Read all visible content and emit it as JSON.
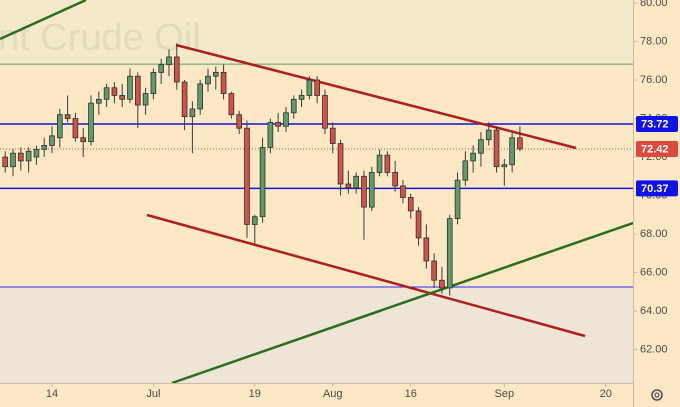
{
  "chart_data": {
    "type": "candlestick",
    "watermark": "nt Crude Oil",
    "xlim": [
      -0.67,
      80.5
    ],
    "xticks": [
      {
        "value": 6,
        "label": "14"
      },
      {
        "value": 19,
        "label": "Jul"
      },
      {
        "value": 32,
        "label": "19"
      },
      {
        "value": 42,
        "label": "Aug"
      },
      {
        "value": 52,
        "label": "16"
      },
      {
        "value": 64,
        "label": "Sep"
      },
      {
        "value": 77,
        "label": "20"
      }
    ],
    "ylim": [
      60.26,
      80.16
    ],
    "yticks": [
      {
        "value": 62,
        "label": "62.00"
      },
      {
        "value": 64,
        "label": "64.00"
      },
      {
        "value": 66,
        "label": "66.00"
      },
      {
        "value": 68,
        "label": "68.00"
      },
      {
        "value": 70,
        "label": "70.00"
      },
      {
        "value": 72,
        "label": "72.00"
      },
      {
        "value": 74,
        "label": "74.00"
      },
      {
        "value": 76,
        "label": "76.00"
      },
      {
        "value": 78,
        "label": "78.00"
      },
      {
        "value": 80,
        "label": "80.00"
      }
    ],
    "up_color": "#5f9c6c",
    "down_color": "#d0524a",
    "open": [
      72.0,
      71.5,
      72.2,
      71.8,
      72.0,
      72.4,
      72.6,
      73.0,
      74.2,
      74.0,
      73.0,
      72.8,
      74.8,
      75.0,
      75.6,
      75.2,
      75.0,
      76.2,
      74.7,
      75.3,
      76.4,
      76.8,
      77.2,
      75.9,
      74.1,
      74.5,
      75.8,
      76.2,
      76.4,
      75.3,
      74.2,
      73.5,
      68.5,
      68.9,
      72.5,
      73.8,
      73.6,
      74.3,
      75.0,
      75.2,
      76.0,
      75.2,
      73.5,
      72.7,
      70.6,
      70.4,
      71.0,
      69.4,
      71.2,
      72.1,
      71.2,
      70.5,
      69.9,
      69.2,
      67.8,
      66.6,
      65.6,
      65.2,
      68.8,
      70.8,
      71.8,
      72.2,
      72.9,
      73.4,
      71.5,
      71.6,
      73.0
    ],
    "high": [
      72.3,
      72.4,
      72.5,
      72.5,
      72.6,
      73.0,
      73.6,
      74.5,
      75.2,
      74.3,
      73.5,
      75.2,
      75.4,
      75.8,
      75.9,
      75.8,
      76.6,
      76.4,
      75.6,
      76.6,
      77.1,
      77.6,
      77.9,
      76.0,
      74.9,
      76.0,
      76.6,
      76.7,
      76.8,
      75.4,
      74.4,
      73.9,
      69.0,
      73.0,
      74.0,
      74.3,
      74.6,
      75.2,
      75.5,
      76.2,
      76.2,
      75.5,
      73.8,
      72.9,
      71.3,
      71.2,
      71.3,
      71.5,
      72.4,
      72.3,
      71.8,
      70.8,
      70.1,
      69.4,
      68.5,
      67.0,
      66.3,
      69.0,
      71.2,
      72.3,
      72.6,
      73.3,
      73.8,
      73.6,
      71.9,
      73.3,
      73.6
    ],
    "low": [
      71.2,
      71.0,
      71.3,
      71.2,
      71.6,
      72.0,
      72.2,
      72.5,
      73.8,
      72.8,
      72.0,
      72.6,
      74.2,
      74.6,
      74.8,
      74.6,
      74.8,
      73.5,
      74.2,
      75.0,
      75.8,
      76.2,
      75.5,
      73.4,
      72.2,
      74.2,
      75.4,
      75.5,
      75.0,
      74.0,
      73.2,
      67.8,
      67.5,
      68.6,
      72.2,
      73.3,
      73.3,
      74.0,
      74.6,
      75.0,
      74.8,
      73.2,
      72.2,
      70.0,
      70.1,
      70.1,
      67.7,
      69.2,
      71.0,
      71.0,
      70.2,
      69.6,
      68.8,
      67.4,
      66.2,
      65.2,
      64.9,
      64.8,
      68.5,
      70.5,
      71.2,
      71.5,
      72.6,
      71.2,
      70.5,
      71.2,
      72.3
    ],
    "close": [
      71.5,
      72.2,
      71.8,
      72.3,
      72.4,
      72.6,
      73.1,
      74.2,
      74.0,
      73.0,
      72.8,
      74.8,
      75.0,
      75.6,
      75.2,
      75.0,
      76.2,
      74.7,
      75.3,
      76.4,
      76.8,
      77.2,
      75.9,
      74.1,
      74.5,
      75.8,
      76.2,
      76.4,
      75.3,
      74.2,
      73.5,
      68.5,
      68.9,
      72.5,
      73.8,
      73.6,
      74.3,
      75.0,
      75.2,
      76.0,
      75.2,
      73.5,
      72.7,
      70.6,
      70.4,
      71.0,
      69.4,
      71.2,
      72.1,
      71.2,
      70.5,
      69.9,
      69.2,
      67.8,
      66.6,
      65.6,
      65.2,
      68.8,
      70.8,
      71.8,
      72.2,
      72.9,
      73.4,
      71.5,
      71.6,
      73.0,
      72.42
    ],
    "levels": [
      {
        "value": 76.83,
        "color": "#5aa05a",
        "width": 1,
        "fill_above": "#f4eac9"
      },
      {
        "value": 65.25,
        "color": "#2a2aff",
        "width": 1,
        "fill_below": "#eee5d6"
      },
      {
        "value": 73.72,
        "label": "73.72",
        "color": "#1010e8",
        "width": 1.5
      },
      {
        "value": 70.37,
        "label": "70.37",
        "color": "#1010e8",
        "width": 1.5
      }
    ],
    "last_price": {
      "value": 72.42,
      "label": "72.42",
      "color": "#e0483e"
    }
  }
}
